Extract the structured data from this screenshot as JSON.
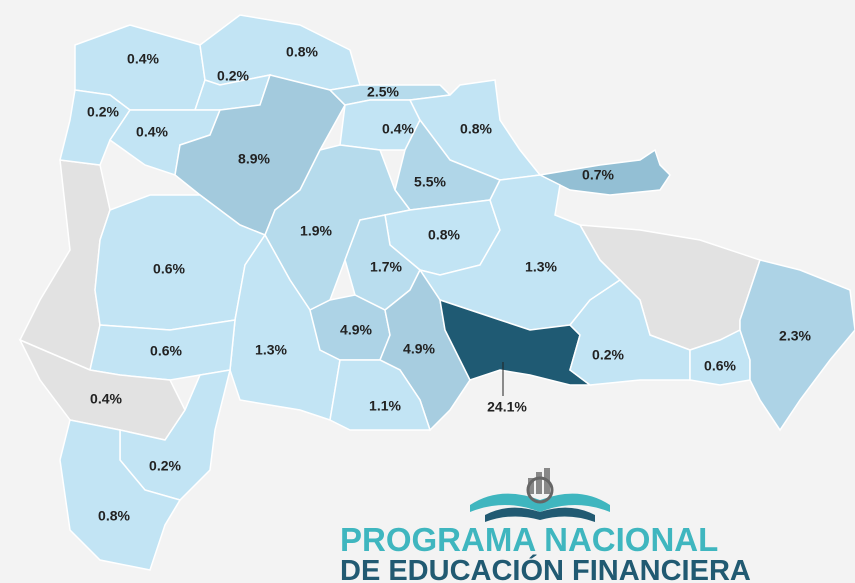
{
  "chart_data": {
    "type": "choropleth",
    "values": [
      0.4,
      0.8,
      0.2,
      0.2,
      0.4,
      8.9,
      2.5,
      0.4,
      0.8,
      5.5,
      0.7,
      1.9,
      0.8,
      1.7,
      1.3,
      0.6,
      1.3,
      4.9,
      4.9,
      24.1,
      1.1,
      0.2,
      0.6,
      2.3,
      0.6,
      0.4,
      0.2,
      0.8
    ],
    "value_labels": [
      "0.4%",
      "0.8%",
      "0.2%",
      "0.2%",
      "0.4%",
      "8.9%",
      "2.5%",
      "0.4%",
      "0.8%",
      "5.5%",
      "0.7%",
      "1.9%",
      "0.8%",
      "1.7%",
      "1.3%",
      "0.6%",
      "1.3%",
      "4.9%",
      "4.9%",
      "24.1%",
      "1.1%",
      "0.2%",
      "0.6%",
      "2.3%",
      "0.6%",
      "0.4%",
      "0.2%",
      "0.8%"
    ],
    "colors": [
      "#c2e4f4",
      "#c2e4f4",
      "#c2e4f4",
      "#c2e4f4",
      "#c2e4f4",
      "#a3cadd",
      "#b6dbec",
      "#c2e4f4",
      "#c2e4f4",
      "#b0d6e8",
      "#93bfd4",
      "#b6dbec",
      "#c2e4f4",
      "#b9ddee",
      "#c2e4f4",
      "#c2e4f4",
      "#c2e4f4",
      "#add3e6",
      "#a7cde0",
      "#1f5a73",
      "#c2e4f4",
      "#c2e4f4",
      "#c2e4f4",
      "#add3e6",
      "#c2e4f4",
      "#e2e2e2",
      "#c2e4f4",
      "#c2e4f4"
    ]
  },
  "logo": {
    "line1": "PROGRAMA NACIONAL",
    "line2": "DE EDUCACIÓN FINANCIERA"
  }
}
